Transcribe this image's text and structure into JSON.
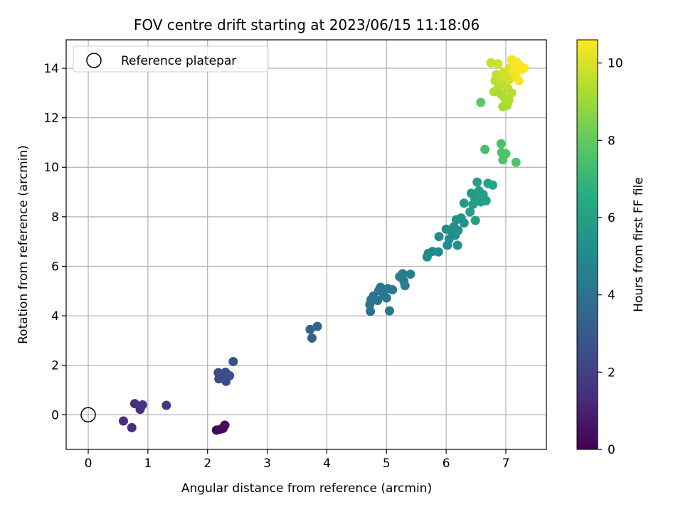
{
  "chart_data": {
    "type": "scatter",
    "title": "FOV centre drift starting at 2023/06/15 11:18:06",
    "xlabel": "Angular distance from reference (arcmin)",
    "ylabel": "Rotation from reference (arcmin)",
    "xlim": [
      -0.37,
      7.68
    ],
    "ylim": [
      -1.4,
      15.15
    ],
    "xticks": [
      0,
      1,
      2,
      3,
      4,
      5,
      6,
      7
    ],
    "yticks": [
      0,
      2,
      4,
      6,
      8,
      10,
      12,
      14
    ],
    "grid": true,
    "legend": {
      "placement": "top-left",
      "entries": [
        "Reference platepar"
      ]
    },
    "reference_point": {
      "x": 0,
      "y": 0
    },
    "colorbar": {
      "label": "Hours from first FF file",
      "range": [
        0,
        10.6
      ],
      "ticks": [
        0,
        2,
        4,
        6,
        8,
        10
      ],
      "colormap": "viridis"
    },
    "points": [
      {
        "x": 2.15,
        "y": -0.62,
        "c": 0.1
      },
      {
        "x": 2.22,
        "y": -0.58,
        "c": 0.2
      },
      {
        "x": 2.26,
        "y": -0.55,
        "c": 0.25
      },
      {
        "x": 2.29,
        "y": -0.42,
        "c": 0.3
      },
      {
        "x": 0.59,
        "y": -0.25,
        "c": 1.35
      },
      {
        "x": 0.73,
        "y": -0.52,
        "c": 1.4
      },
      {
        "x": 0.78,
        "y": 0.45,
        "c": 1.5
      },
      {
        "x": 0.87,
        "y": 0.22,
        "c": 1.55
      },
      {
        "x": 0.91,
        "y": 0.4,
        "c": 1.6
      },
      {
        "x": 1.31,
        "y": 0.38,
        "c": 1.75
      },
      {
        "x": 2.18,
        "y": 1.7,
        "c": 2.3
      },
      {
        "x": 2.19,
        "y": 1.45,
        "c": 2.35
      },
      {
        "x": 2.25,
        "y": 1.62,
        "c": 2.4
      },
      {
        "x": 2.3,
        "y": 1.72,
        "c": 2.45
      },
      {
        "x": 2.31,
        "y": 1.35,
        "c": 2.5
      },
      {
        "x": 2.37,
        "y": 1.58,
        "c": 2.55
      },
      {
        "x": 2.43,
        "y": 2.15,
        "c": 2.6
      },
      {
        "x": 3.72,
        "y": 3.45,
        "c": 3.25
      },
      {
        "x": 3.75,
        "y": 3.1,
        "c": 3.3
      },
      {
        "x": 3.84,
        "y": 3.57,
        "c": 3.35
      },
      {
        "x": 4.73,
        "y": 4.18,
        "c": 3.95
      },
      {
        "x": 4.72,
        "y": 4.45,
        "c": 4.0
      },
      {
        "x": 4.74,
        "y": 4.65,
        "c": 4.0
      },
      {
        "x": 4.78,
        "y": 4.8,
        "c": 4.05
      },
      {
        "x": 4.85,
        "y": 4.62,
        "c": 4.1
      },
      {
        "x": 4.87,
        "y": 5.02,
        "c": 4.1
      },
      {
        "x": 4.9,
        "y": 5.15,
        "c": 4.15
      },
      {
        "x": 4.95,
        "y": 4.85,
        "c": 4.15
      },
      {
        "x": 5.0,
        "y": 4.72,
        "c": 4.2
      },
      {
        "x": 5.02,
        "y": 5.1,
        "c": 4.2
      },
      {
        "x": 5.05,
        "y": 4.2,
        "c": 4.25
      },
      {
        "x": 5.1,
        "y": 5.05,
        "c": 4.25
      },
      {
        "x": 5.22,
        "y": 5.58,
        "c": 4.4
      },
      {
        "x": 5.27,
        "y": 5.7,
        "c": 4.45
      },
      {
        "x": 5.29,
        "y": 5.4,
        "c": 4.45
      },
      {
        "x": 5.31,
        "y": 5.22,
        "c": 4.5
      },
      {
        "x": 5.4,
        "y": 5.68,
        "c": 4.55
      },
      {
        "x": 5.68,
        "y": 6.38,
        "c": 4.95
      },
      {
        "x": 5.7,
        "y": 6.52,
        "c": 5.0
      },
      {
        "x": 5.77,
        "y": 6.6,
        "c": 5.0
      },
      {
        "x": 5.87,
        "y": 6.58,
        "c": 5.05
      },
      {
        "x": 5.88,
        "y": 7.2,
        "c": 5.1
      },
      {
        "x": 6.0,
        "y": 7.5,
        "c": 5.15
      },
      {
        "x": 6.02,
        "y": 6.85,
        "c": 5.15
      },
      {
        "x": 6.05,
        "y": 7.1,
        "c": 5.2
      },
      {
        "x": 6.1,
        "y": 7.35,
        "c": 5.2
      },
      {
        "x": 6.13,
        "y": 7.6,
        "c": 5.25
      },
      {
        "x": 6.15,
        "y": 7.25,
        "c": 5.25
      },
      {
        "x": 6.17,
        "y": 7.88,
        "c": 5.3
      },
      {
        "x": 6.19,
        "y": 6.85,
        "c": 5.3
      },
      {
        "x": 6.2,
        "y": 7.45,
        "c": 5.35
      },
      {
        "x": 6.25,
        "y": 7.95,
        "c": 5.35
      },
      {
        "x": 6.3,
        "y": 7.75,
        "c": 5.4
      },
      {
        "x": 6.3,
        "y": 8.55,
        "c": 5.75
      },
      {
        "x": 6.4,
        "y": 8.2,
        "c": 5.8
      },
      {
        "x": 6.42,
        "y": 8.95,
        "c": 5.8
      },
      {
        "x": 6.45,
        "y": 8.5,
        "c": 5.85
      },
      {
        "x": 6.48,
        "y": 8.75,
        "c": 5.85
      },
      {
        "x": 6.49,
        "y": 7.85,
        "c": 5.9
      },
      {
        "x": 6.52,
        "y": 9.4,
        "c": 5.9
      },
      {
        "x": 6.55,
        "y": 9.05,
        "c": 5.95
      },
      {
        "x": 6.58,
        "y": 8.6,
        "c": 5.95
      },
      {
        "x": 6.62,
        "y": 8.9,
        "c": 6.0
      },
      {
        "x": 6.67,
        "y": 8.65,
        "c": 6.05
      },
      {
        "x": 6.7,
        "y": 9.35,
        "c": 6.05
      },
      {
        "x": 6.78,
        "y": 9.28,
        "c": 6.1
      },
      {
        "x": 6.65,
        "y": 10.72,
        "c": 7.4
      },
      {
        "x": 6.92,
        "y": 10.95,
        "c": 7.5
      },
      {
        "x": 6.93,
        "y": 10.6,
        "c": 7.55
      },
      {
        "x": 6.95,
        "y": 10.3,
        "c": 7.55
      },
      {
        "x": 7.0,
        "y": 10.55,
        "c": 7.6
      },
      {
        "x": 7.17,
        "y": 10.2,
        "c": 7.65
      },
      {
        "x": 6.58,
        "y": 12.62,
        "c": 7.9
      },
      {
        "x": 6.75,
        "y": 14.22,
        "c": 9.6
      },
      {
        "x": 6.8,
        "y": 13.05,
        "c": 9.3
      },
      {
        "x": 6.82,
        "y": 13.5,
        "c": 9.5
      },
      {
        "x": 6.84,
        "y": 13.75,
        "c": 9.6
      },
      {
        "x": 6.87,
        "y": 14.18,
        "c": 9.75
      },
      {
        "x": 6.88,
        "y": 13.25,
        "c": 9.4
      },
      {
        "x": 6.9,
        "y": 13.6,
        "c": 9.7
      },
      {
        "x": 6.92,
        "y": 12.95,
        "c": 9.2
      },
      {
        "x": 6.95,
        "y": 12.45,
        "c": 9.1
      },
      {
        "x": 6.96,
        "y": 13.4,
        "c": 9.55
      },
      {
        "x": 6.97,
        "y": 13.85,
        "c": 9.85
      },
      {
        "x": 6.98,
        "y": 12.8,
        "c": 9.3
      },
      {
        "x": 7.0,
        "y": 13.7,
        "c": 9.9
      },
      {
        "x": 7.02,
        "y": 12.5,
        "c": 9.2
      },
      {
        "x": 7.03,
        "y": 13.2,
        "c": 9.5
      },
      {
        "x": 7.05,
        "y": 12.7,
        "c": 9.3
      },
      {
        "x": 7.06,
        "y": 13.55,
        "c": 9.8
      },
      {
        "x": 7.08,
        "y": 14.05,
        "c": 10.1
      },
      {
        "x": 7.1,
        "y": 13.0,
        "c": 9.45
      },
      {
        "x": 7.1,
        "y": 14.35,
        "c": 10.4
      },
      {
        "x": 7.12,
        "y": 13.8,
        "c": 10.3
      },
      {
        "x": 7.13,
        "y": 14.2,
        "c": 10.45
      },
      {
        "x": 7.15,
        "y": 14.0,
        "c": 10.5
      },
      {
        "x": 7.17,
        "y": 13.65,
        "c": 10.35
      },
      {
        "x": 7.18,
        "y": 14.25,
        "c": 10.55
      },
      {
        "x": 7.2,
        "y": 13.9,
        "c": 10.5
      },
      {
        "x": 7.22,
        "y": 13.5,
        "c": 10.45
      },
      {
        "x": 7.24,
        "y": 14.1,
        "c": 10.55
      },
      {
        "x": 7.27,
        "y": 13.95,
        "c": 10.5
      },
      {
        "x": 7.31,
        "y": 14.0,
        "c": 10.6
      }
    ]
  }
}
